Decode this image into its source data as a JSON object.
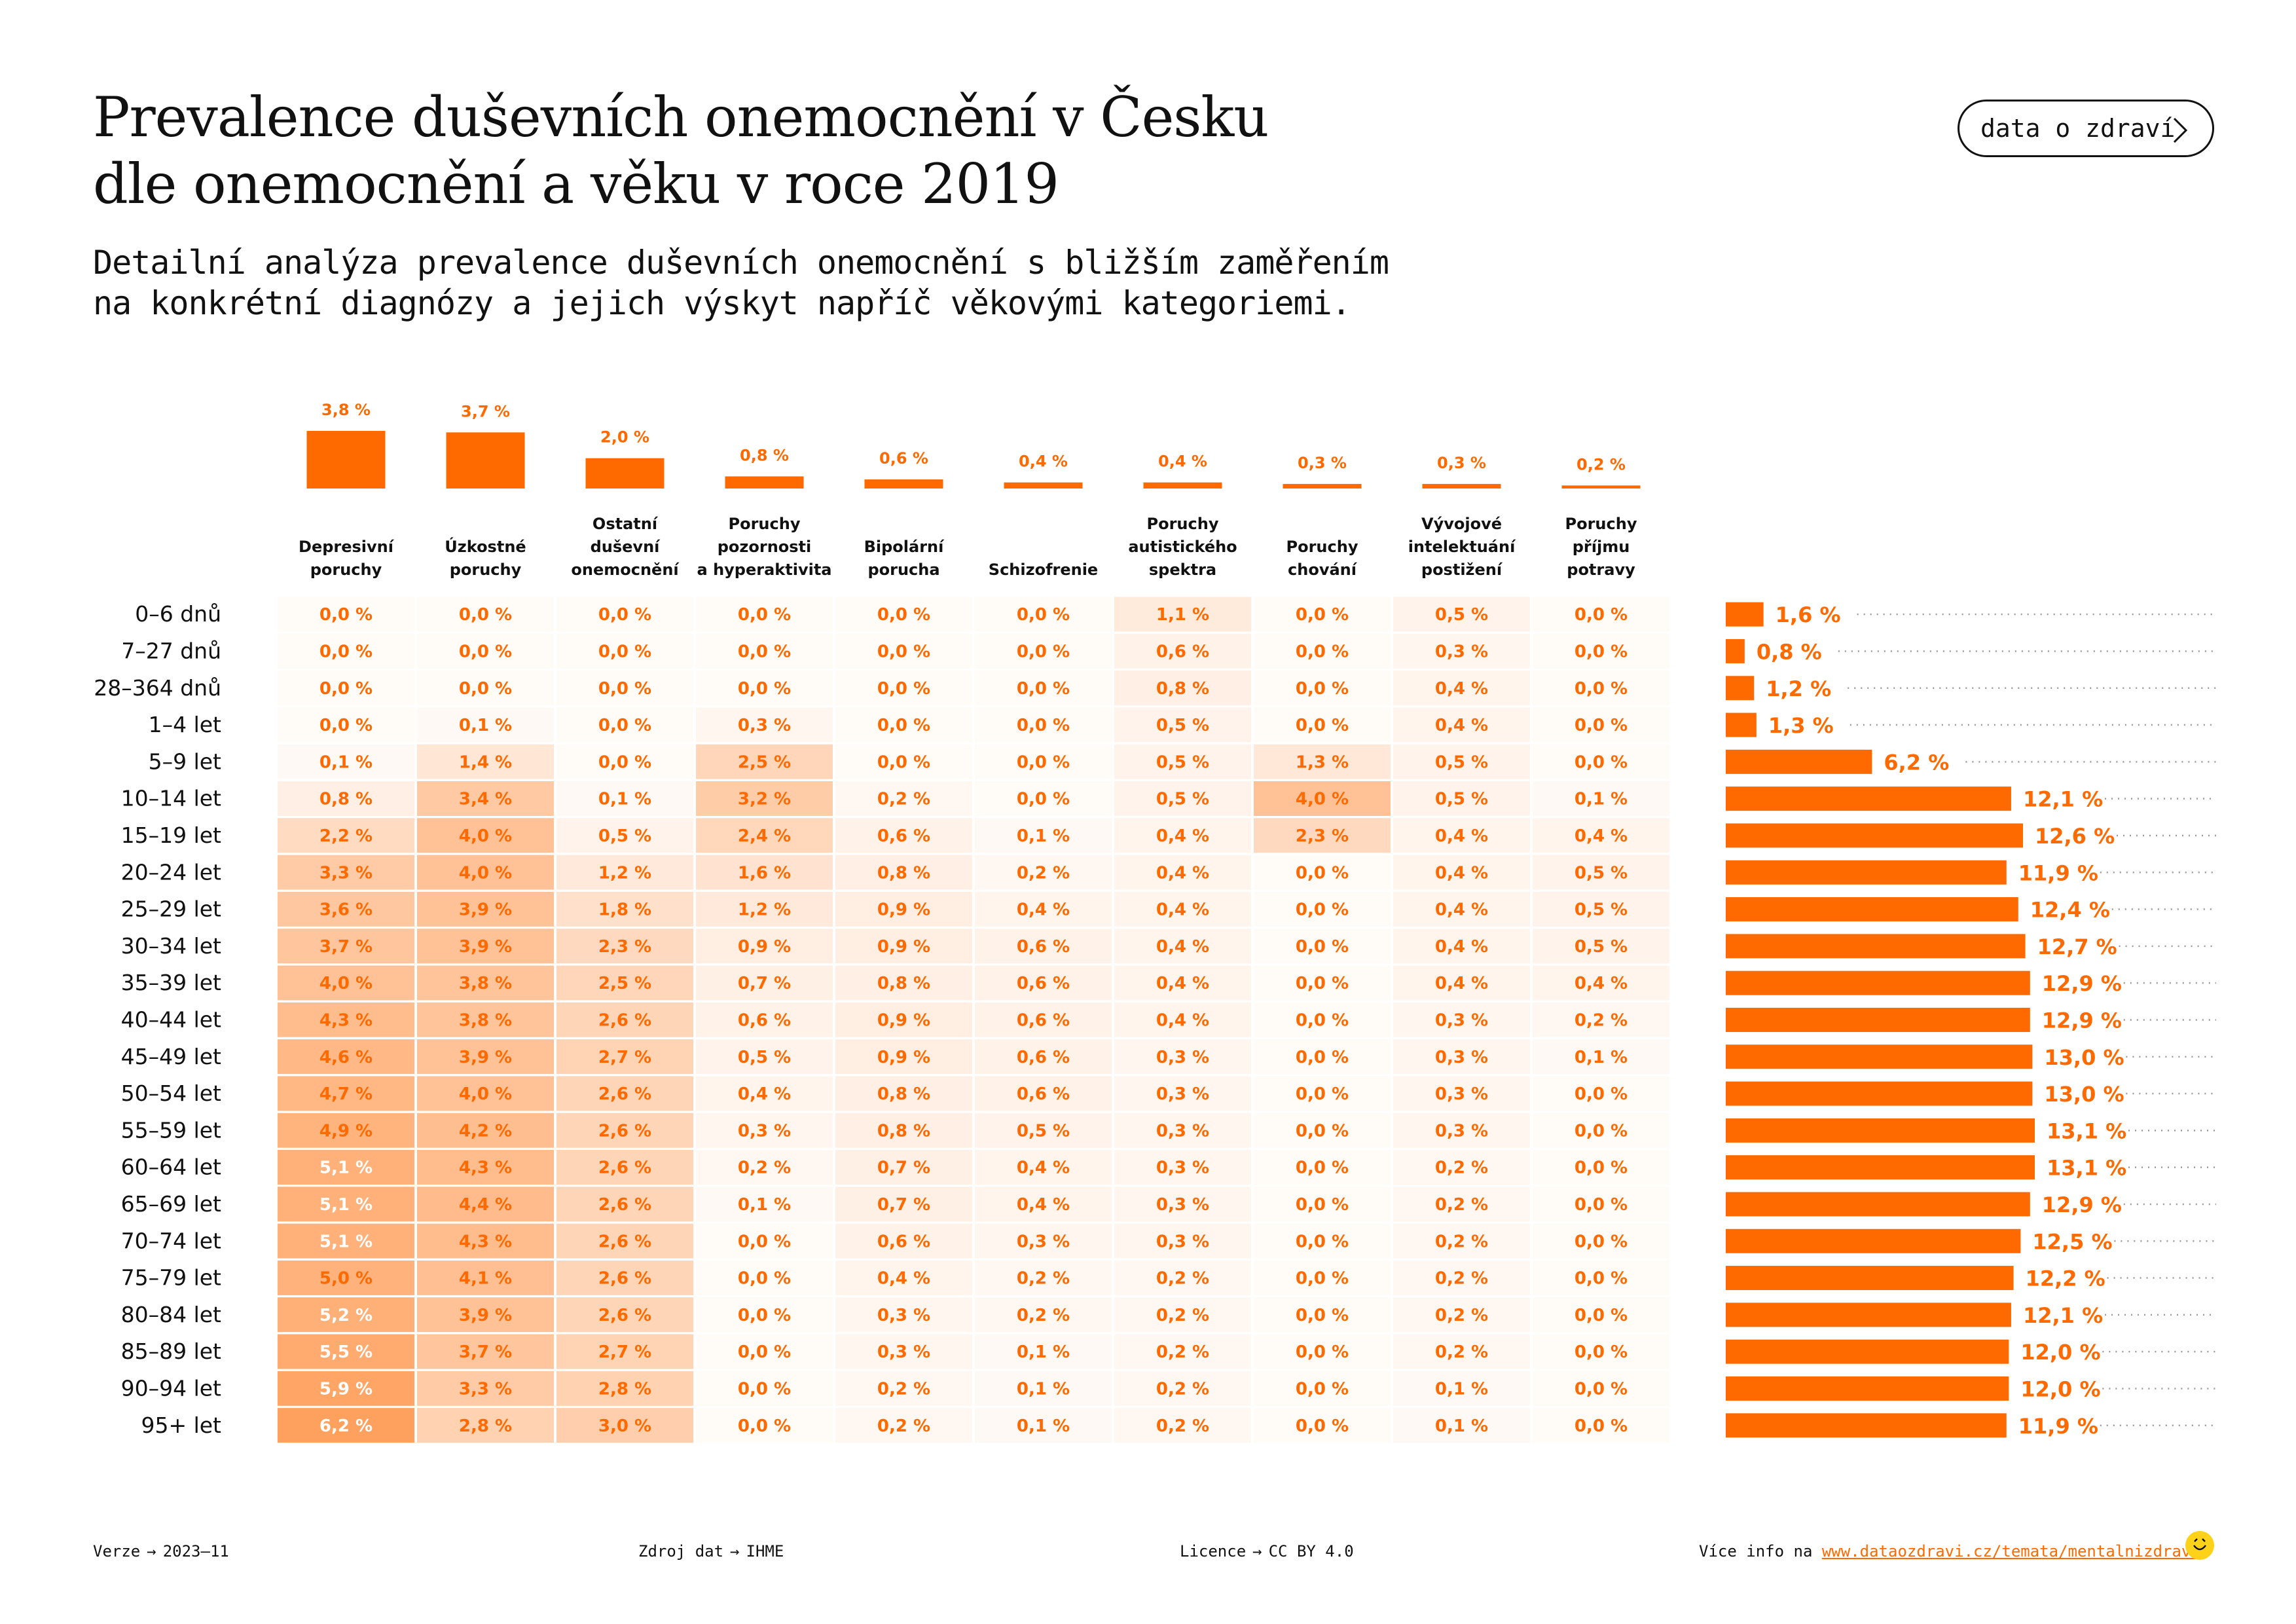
{
  "header": {
    "title_line1": "Prevalence duševních onemocnění v Česku",
    "title_line2": "dle onemocnění a věku v roce 2019",
    "subtitle_line1": "Detailní analýza prevalence duševních onemocnění s bližším zaměřením",
    "subtitle_line2": "na konkrétní diagnózy a jejich výskyt napříč věkovými kategoriemi.",
    "brand_button": "data o zdraví",
    "brand_icon": "chevron-right-icon"
  },
  "colors": {
    "accent": "#ff6a00",
    "text": "#111111",
    "heat_base": "#ff6a00",
    "logo": "#ffd21a"
  },
  "chart_data": {
    "type": "heatmap",
    "diagnoses": [
      {
        "label": [
          "Depresivní",
          "poruchy"
        ],
        "total": 3.8,
        "total_label": "3,8 %"
      },
      {
        "label": [
          "Úzkostné",
          "poruchy"
        ],
        "total": 3.7,
        "total_label": "3,7 %"
      },
      {
        "label": [
          "Ostatní",
          "duševní",
          "onemocnění"
        ],
        "total": 2.0,
        "total_label": "2,0 %"
      },
      {
        "label": [
          "Poruchy",
          "pozornosti",
          "a hyperaktivita"
        ],
        "total": 0.8,
        "total_label": "0,8 %"
      },
      {
        "label": [
          "Bipolární",
          "porucha"
        ],
        "total": 0.6,
        "total_label": "0,6 %"
      },
      {
        "label": [
          "Schizofrenie"
        ],
        "total": 0.4,
        "total_label": "0,4 %"
      },
      {
        "label": [
          "Poruchy",
          "autistického",
          "spektra"
        ],
        "total": 0.4,
        "total_label": "0,4 %"
      },
      {
        "label": [
          "Poruchy",
          "chování"
        ],
        "total": 0.3,
        "total_label": "0,3 %"
      },
      {
        "label": [
          "Vývojové",
          "intelektuání",
          "postižení"
        ],
        "total": 0.3,
        "total_label": "0,3 %"
      },
      {
        "label": [
          "Poruchy",
          "příjmu",
          "potravy"
        ],
        "total": 0.2,
        "total_label": "0,2 %"
      }
    ],
    "age_groups": [
      "0–6 dnů",
      "7–27 dnů",
      "28–364 dnů",
      "1–4 let",
      "5–9 let",
      "10–14 let",
      "15–19 let",
      "20–24 let",
      "25–29 let",
      "30–34 let",
      "35–39 let",
      "40–44 let",
      "45–49 let",
      "50–54 let",
      "55–59 let",
      "60–64 let",
      "65–69 let",
      "70–74 let",
      "75–79 let",
      "80–84 let",
      "85–89 let",
      "90–94 let",
      "95+ let"
    ],
    "values": [
      [
        0.0,
        0.0,
        0.0,
        0.0,
        0.0,
        0.0,
        1.1,
        0.0,
        0.5,
        0.0
      ],
      [
        0.0,
        0.0,
        0.0,
        0.0,
        0.0,
        0.0,
        0.6,
        0.0,
        0.3,
        0.0
      ],
      [
        0.0,
        0.0,
        0.0,
        0.0,
        0.0,
        0.0,
        0.8,
        0.0,
        0.4,
        0.0
      ],
      [
        0.0,
        0.1,
        0.0,
        0.3,
        0.0,
        0.0,
        0.5,
        0.0,
        0.4,
        0.0
      ],
      [
        0.1,
        1.4,
        0.0,
        2.5,
        0.0,
        0.0,
        0.5,
        1.3,
        0.5,
        0.0
      ],
      [
        0.8,
        3.4,
        0.1,
        3.2,
        0.2,
        0.0,
        0.5,
        4.0,
        0.5,
        0.1
      ],
      [
        2.2,
        4.0,
        0.5,
        2.4,
        0.6,
        0.1,
        0.4,
        2.3,
        0.4,
        0.4
      ],
      [
        3.3,
        4.0,
        1.2,
        1.6,
        0.8,
        0.2,
        0.4,
        0.0,
        0.4,
        0.5
      ],
      [
        3.6,
        3.9,
        1.8,
        1.2,
        0.9,
        0.4,
        0.4,
        0.0,
        0.4,
        0.5
      ],
      [
        3.7,
        3.9,
        2.3,
        0.9,
        0.9,
        0.6,
        0.4,
        0.0,
        0.4,
        0.5
      ],
      [
        4.0,
        3.8,
        2.5,
        0.7,
        0.8,
        0.6,
        0.4,
        0.0,
        0.4,
        0.4
      ],
      [
        4.3,
        3.8,
        2.6,
        0.6,
        0.9,
        0.6,
        0.4,
        0.0,
        0.3,
        0.2
      ],
      [
        4.6,
        3.9,
        2.7,
        0.5,
        0.9,
        0.6,
        0.3,
        0.0,
        0.3,
        0.1
      ],
      [
        4.7,
        4.0,
        2.6,
        0.4,
        0.8,
        0.6,
        0.3,
        0.0,
        0.3,
        0.0
      ],
      [
        4.9,
        4.2,
        2.6,
        0.3,
        0.8,
        0.5,
        0.3,
        0.0,
        0.3,
        0.0
      ],
      [
        5.1,
        4.3,
        2.6,
        0.2,
        0.7,
        0.4,
        0.3,
        0.0,
        0.2,
        0.0
      ],
      [
        5.1,
        4.4,
        2.6,
        0.1,
        0.7,
        0.4,
        0.3,
        0.0,
        0.2,
        0.0
      ],
      [
        5.1,
        4.3,
        2.6,
        0.0,
        0.6,
        0.3,
        0.3,
        0.0,
        0.2,
        0.0
      ],
      [
        5.0,
        4.1,
        2.6,
        0.0,
        0.4,
        0.2,
        0.2,
        0.0,
        0.2,
        0.0
      ],
      [
        5.2,
        3.9,
        2.6,
        0.0,
        0.3,
        0.2,
        0.2,
        0.0,
        0.2,
        0.0
      ],
      [
        5.5,
        3.7,
        2.7,
        0.0,
        0.3,
        0.1,
        0.2,
        0.0,
        0.2,
        0.0
      ],
      [
        5.9,
        3.3,
        2.8,
        0.0,
        0.2,
        0.1,
        0.2,
        0.0,
        0.1,
        0.0
      ],
      [
        6.2,
        2.8,
        3.0,
        0.0,
        0.2,
        0.1,
        0.2,
        0.0,
        0.1,
        0.0
      ]
    ],
    "row_totals": [
      1.6,
      0.8,
      1.2,
      1.3,
      6.2,
      12.1,
      12.6,
      11.9,
      12.4,
      12.7,
      12.9,
      12.9,
      13.0,
      13.0,
      13.1,
      13.1,
      12.9,
      12.5,
      12.2,
      12.1,
      12.0,
      12.0,
      11.9
    ],
    "value_unit": " %",
    "decimal_separator": ","
  },
  "footer": {
    "version_label": "Verze",
    "version_value": "2023–11",
    "source_label": "Zdroj dat",
    "source_value": "IHME",
    "license_label": "Licence",
    "license_value": "CC BY 4.0",
    "more_label": "Více info na",
    "more_link": "www.dataozdravi.cz/temata/mentalnizdravi",
    "arrow": "→",
    "logo_icon": "smile-logo-icon"
  }
}
